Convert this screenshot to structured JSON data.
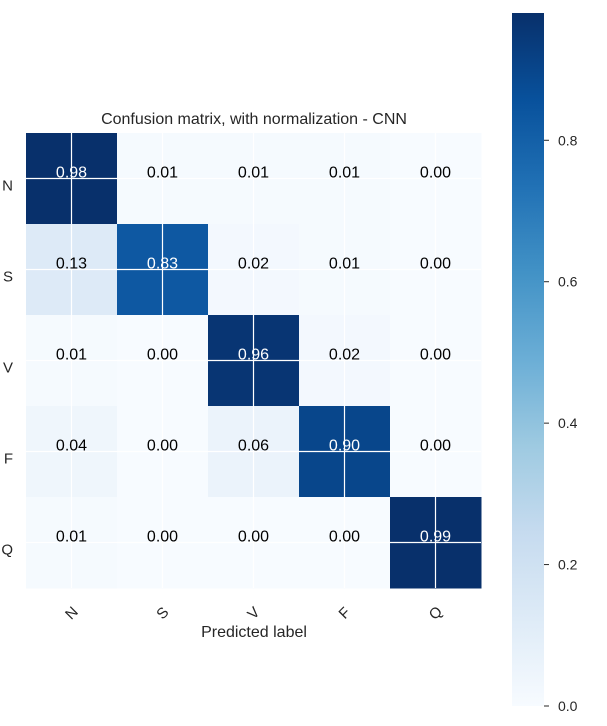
{
  "chart_data": {
    "type": "heatmap",
    "title": "Confusion matrix, with normalization - CNN",
    "xlabel": "Predicted label",
    "ylabel": "",
    "x_categories": [
      "N",
      "S",
      "V",
      "F",
      "Q"
    ],
    "y_categories": [
      "N",
      "S",
      "V",
      "F",
      "Q"
    ],
    "values": [
      [
        0.98,
        0.01,
        0.01,
        0.01,
        0.0
      ],
      [
        0.13,
        0.83,
        0.02,
        0.01,
        0.0
      ],
      [
        0.01,
        0.0,
        0.96,
        0.02,
        0.0
      ],
      [
        0.04,
        0.0,
        0.06,
        0.9,
        0.0
      ],
      [
        0.01,
        0.0,
        0.0,
        0.0,
        0.99
      ]
    ],
    "value_format": "0.00",
    "colormap": "Blues",
    "colorbar": {
      "range": [
        0,
        0.98
      ],
      "ticks": [
        0.0,
        0.2,
        0.4,
        0.6,
        0.8
      ],
      "tick_labels": [
        "0.0",
        "0.2",
        "0.4",
        "0.6",
        "0.8"
      ]
    },
    "grid": true,
    "x_tick_rotation": 45
  }
}
